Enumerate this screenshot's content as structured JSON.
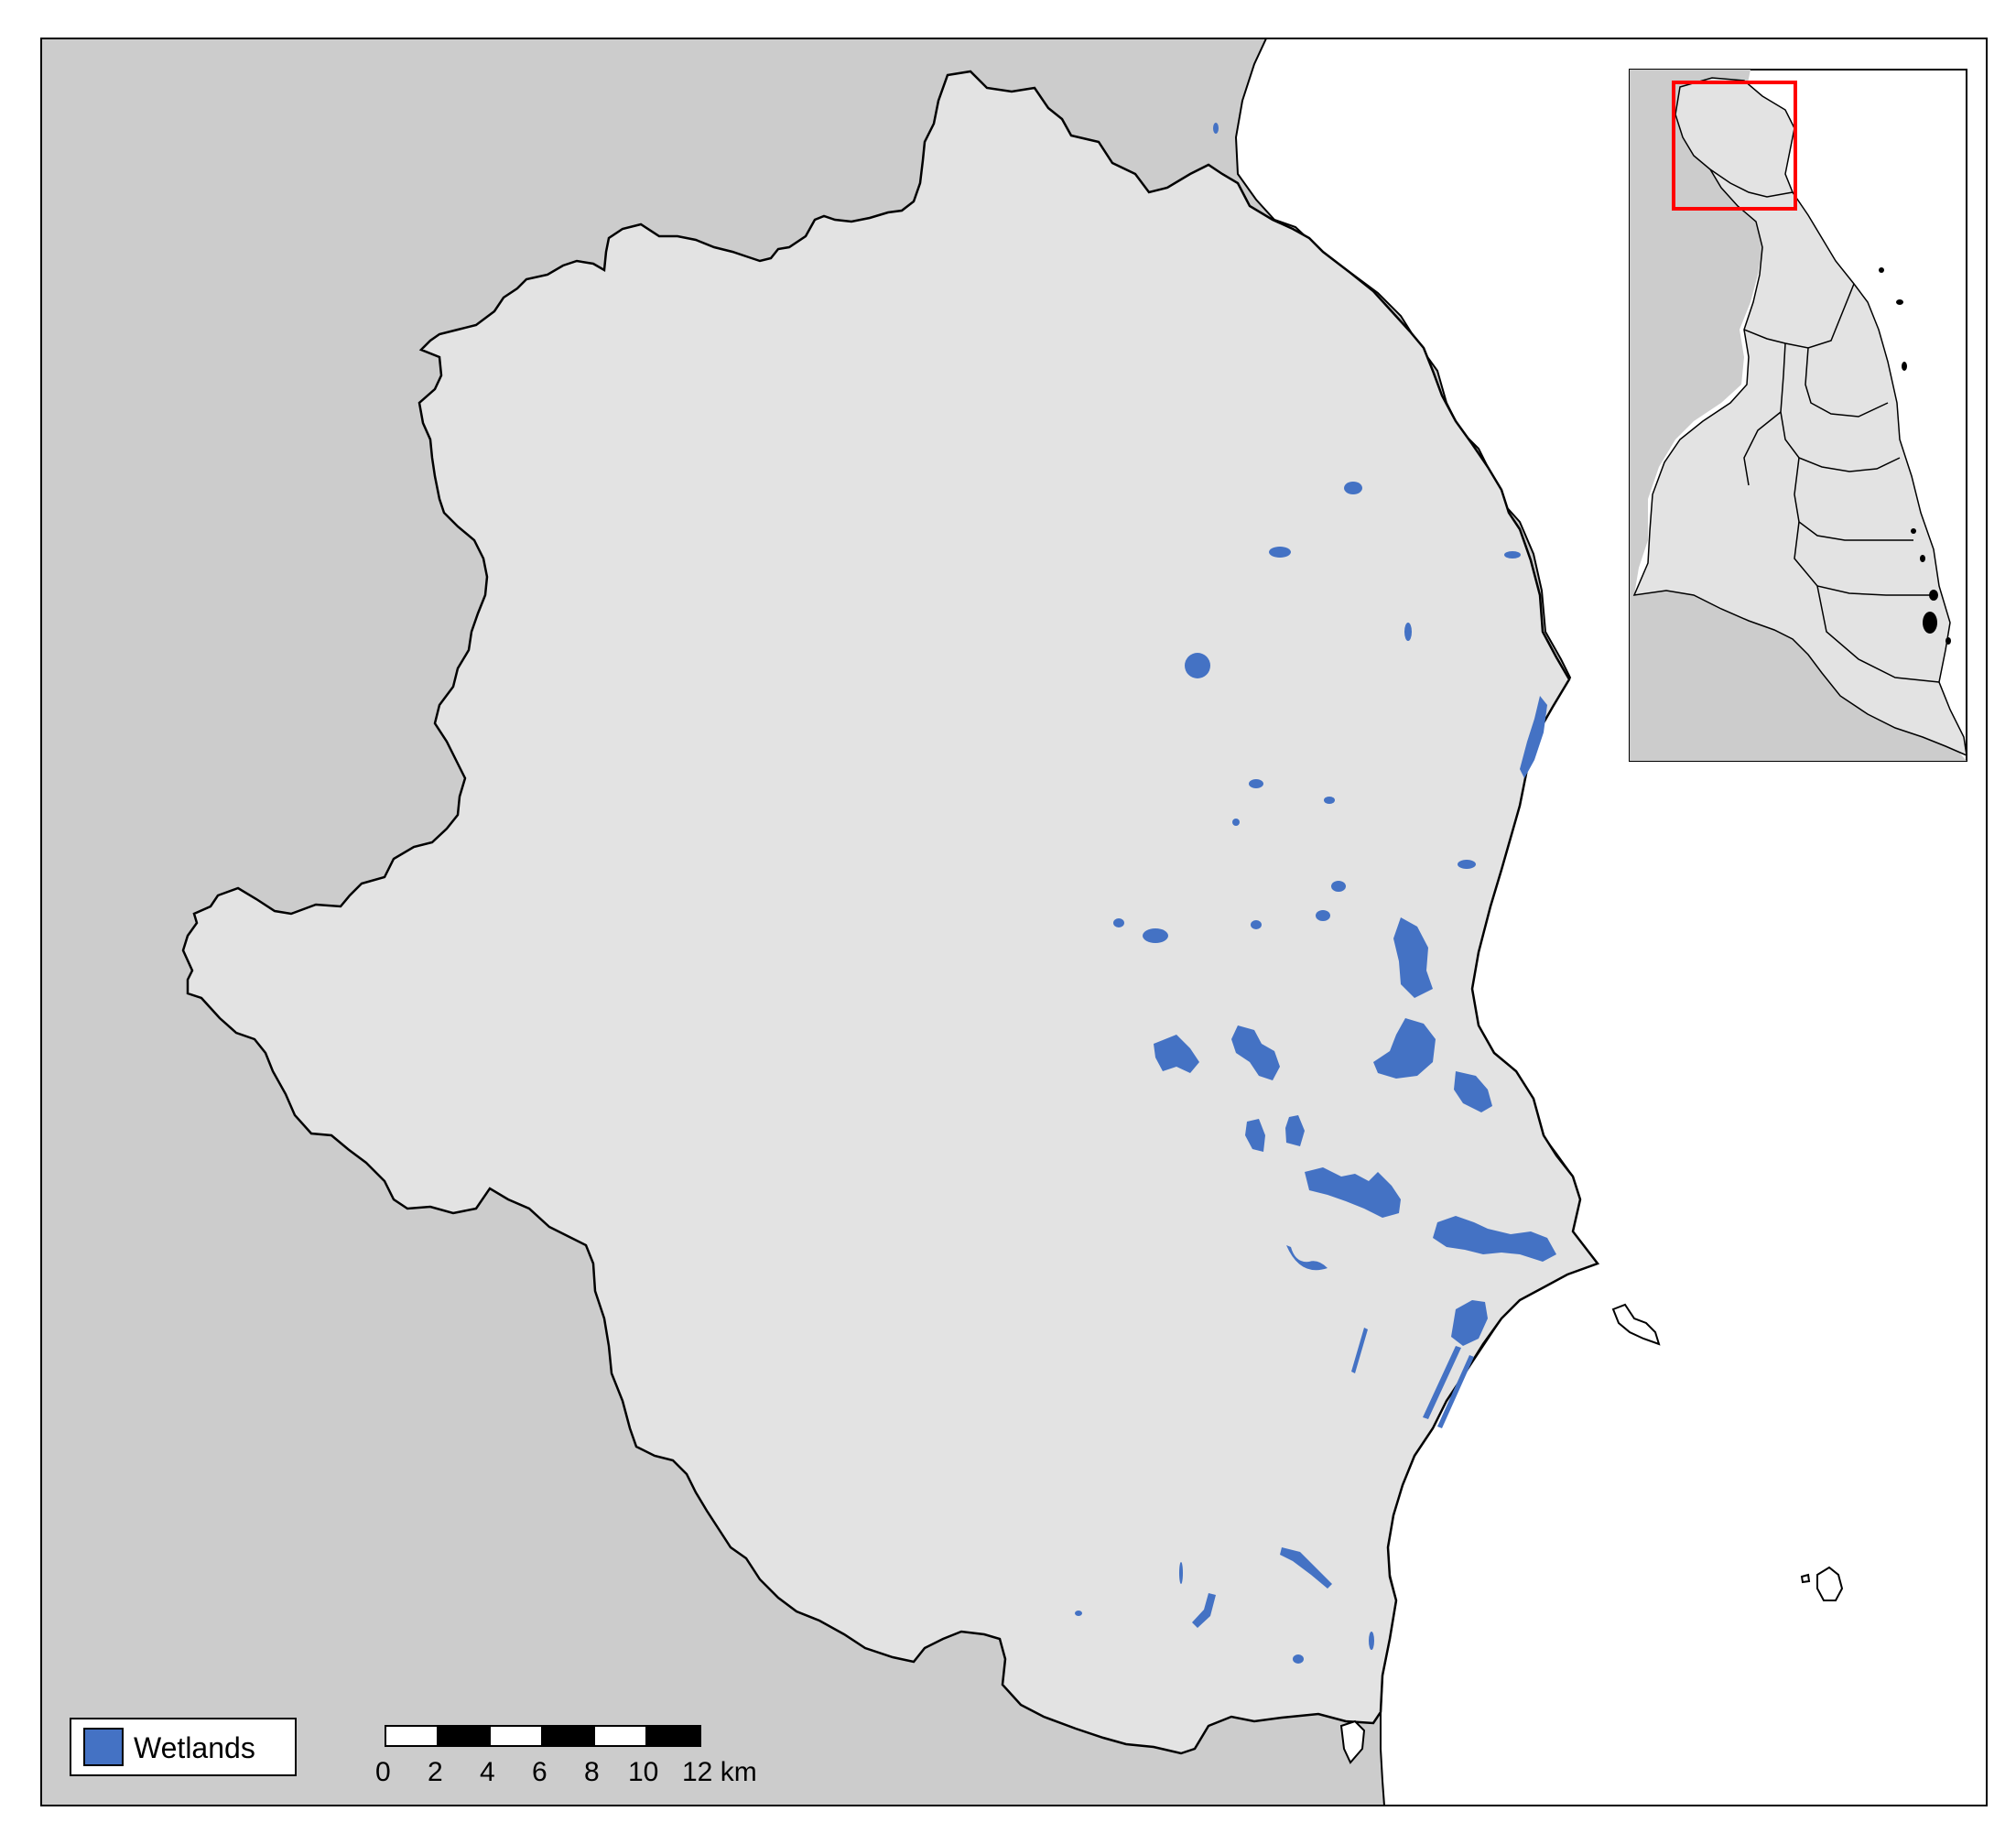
{
  "legend": {
    "items": [
      {
        "label": "Wetlands",
        "color": "#4472C4"
      }
    ]
  },
  "scale_bar": {
    "ticks": [
      "0",
      "2",
      "4",
      "6",
      "8",
      "10",
      "12 km"
    ],
    "unit": "km"
  },
  "colors": {
    "catchment_fill": "#E3E3E3",
    "surrounding_land": "#CCCCCC",
    "ocean": "#FFFFFF",
    "wetland": "#4472C4",
    "inset_highlight": "#FF0000",
    "boundary": "#000000"
  },
  "inset": {
    "highlight": "red rectangle marking main map extent"
  }
}
